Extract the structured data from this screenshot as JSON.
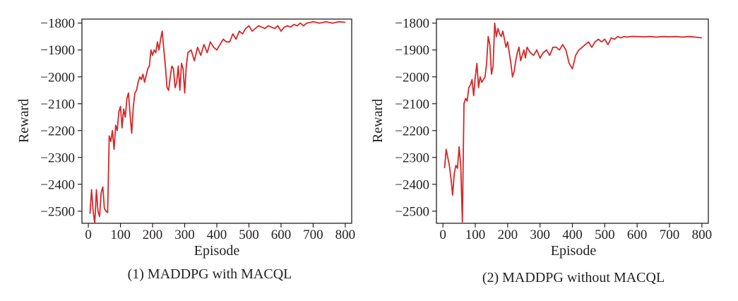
{
  "colors": {
    "line": "#d62728",
    "axis": "#231f20",
    "background": "#ffffff"
  },
  "chart_data": [
    {
      "type": "line",
      "caption": "(1) MADDPG with MACQL",
      "xlabel": "Episode",
      "ylabel": "Reward",
      "xlim": [
        -20,
        820
      ],
      "ylim": [
        -2545,
        -1785
      ],
      "xticks": [
        0,
        100,
        200,
        300,
        400,
        500,
        600,
        700,
        800
      ],
      "xtick_labels": [
        "0",
        "100",
        "200",
        "300",
        "400",
        "500",
        "600",
        "700",
        "800"
      ],
      "yticks": [
        -2500,
        -2400,
        -2300,
        -2200,
        -2100,
        -2000,
        -1900,
        -1800
      ],
      "ytick_labels": [
        "−2500",
        "−2400",
        "−2300",
        "−2200",
        "−2100",
        "−2000",
        "−1900",
        "−1800"
      ],
      "grid": false,
      "series": [
        {
          "x": [
            5,
            10,
            15,
            20,
            25,
            30,
            35,
            40,
            45,
            50,
            55,
            60,
            65,
            70,
            75,
            80,
            85,
            90,
            95,
            100,
            105,
            110,
            115,
            120,
            125,
            130,
            135,
            140,
            145,
            150,
            155,
            160,
            165,
            170,
            175,
            180,
            185,
            190,
            195,
            200,
            205,
            210,
            215,
            220,
            225,
            230,
            235,
            240,
            245,
            250,
            255,
            260,
            265,
            270,
            275,
            280,
            285,
            290,
            295,
            300,
            305,
            310,
            320,
            330,
            340,
            350,
            360,
            370,
            380,
            390,
            400,
            410,
            420,
            430,
            440,
            450,
            460,
            470,
            480,
            490,
            500,
            510,
            520,
            530,
            540,
            550,
            560,
            570,
            580,
            590,
            600,
            610,
            620,
            630,
            640,
            650,
            660,
            670,
            680,
            690,
            700,
            720,
            740,
            760,
            780,
            800
          ],
          "y": [
            -2510,
            -2420,
            -2500,
            -2545,
            -2420,
            -2500,
            -2520,
            -2430,
            -2410,
            -2490,
            -2500,
            -2505,
            -2220,
            -2240,
            -2200,
            -2270,
            -2180,
            -2200,
            -2130,
            -2110,
            -2190,
            -2120,
            -2150,
            -2080,
            -2060,
            -2140,
            -2210,
            -2110,
            -2060,
            -2050,
            -2020,
            -2000,
            -2010,
            -1990,
            -2020,
            -1995,
            -1970,
            -1960,
            -1900,
            -1920,
            -1900,
            -1910,
            -1870,
            -1900,
            -1860,
            -1830,
            -1900,
            -1960,
            -2040,
            -2050,
            -2000,
            -1960,
            -1970,
            -2040,
            -2020,
            -1960,
            -2050,
            -1950,
            -1970,
            -2060,
            -1960,
            -1910,
            -1900,
            -1940,
            -1890,
            -1920,
            -1880,
            -1910,
            -1870,
            -1890,
            -1900,
            -1880,
            -1860,
            -1870,
            -1870,
            -1840,
            -1860,
            -1830,
            -1840,
            -1820,
            -1810,
            -1830,
            -1820,
            -1810,
            -1815,
            -1820,
            -1810,
            -1815,
            -1820,
            -1810,
            -1830,
            -1815,
            -1810,
            -1815,
            -1805,
            -1810,
            -1800,
            -1810,
            -1800,
            -1798,
            -1795,
            -1800,
            -1795,
            -1800,
            -1795,
            -1797
          ]
        }
      ]
    },
    {
      "type": "line",
      "caption": "(2) MADDPG without MACQL",
      "xlabel": "Episode",
      "ylabel": "Reward",
      "xlim": [
        -20,
        820
      ],
      "ylim": [
        -2545,
        -1785
      ],
      "xticks": [
        0,
        100,
        200,
        300,
        400,
        500,
        600,
        700,
        800
      ],
      "xtick_labels": [
        "0",
        "100",
        "200",
        "300",
        "400",
        "500",
        "600",
        "700",
        "800"
      ],
      "yticks": [
        -2500,
        -2400,
        -2300,
        -2200,
        -2100,
        -2000,
        -1900,
        -1800
      ],
      "ytick_labels": [
        "−2500",
        "−2400",
        "−2300",
        "−2200",
        "−2100",
        "−2000",
        "−1900",
        "−1800"
      ],
      "grid": false,
      "series": [
        {
          "x": [
            5,
            10,
            15,
            20,
            25,
            30,
            35,
            40,
            45,
            50,
            55,
            60,
            65,
            70,
            75,
            80,
            85,
            90,
            95,
            100,
            105,
            110,
            115,
            120,
            125,
            130,
            135,
            140,
            145,
            150,
            155,
            160,
            165,
            170,
            175,
            180,
            185,
            190,
            195,
            200,
            205,
            210,
            215,
            220,
            225,
            230,
            235,
            240,
            245,
            250,
            255,
            260,
            270,
            280,
            290,
            300,
            310,
            320,
            330,
            340,
            350,
            360,
            370,
            380,
            390,
            400,
            410,
            420,
            430,
            440,
            450,
            460,
            470,
            480,
            490,
            500,
            510,
            520,
            530,
            540,
            550,
            560,
            570,
            580,
            600,
            620,
            640,
            660,
            680,
            700,
            720,
            740,
            760,
            780,
            800
          ],
          "y": [
            -2340,
            -2270,
            -2300,
            -2330,
            -2380,
            -2440,
            -2360,
            -2330,
            -2340,
            -2260,
            -2330,
            -2540,
            -2100,
            -2080,
            -2090,
            -2040,
            -2030,
            -2010,
            -2070,
            -2000,
            -1950,
            -2040,
            -2000,
            -2020,
            -2010,
            -2000,
            -1950,
            -1850,
            -1880,
            -1990,
            -1960,
            -1800,
            -1850,
            -1820,
            -1840,
            -1850,
            -1830,
            -1860,
            -1890,
            -1870,
            -1910,
            -1950,
            -2000,
            -1980,
            -1940,
            -1910,
            -1890,
            -1940,
            -1920,
            -1900,
            -1930,
            -1890,
            -1910,
            -1920,
            -1900,
            -1930,
            -1910,
            -1900,
            -1920,
            -1890,
            -1890,
            -1900,
            -1880,
            -1900,
            -1950,
            -1970,
            -1920,
            -1900,
            -1890,
            -1880,
            -1870,
            -1890,
            -1870,
            -1860,
            -1870,
            -1860,
            -1880,
            -1855,
            -1860,
            -1850,
            -1855,
            -1850,
            -1852,
            -1850,
            -1850,
            -1851,
            -1850,
            -1852,
            -1850,
            -1851,
            -1850,
            -1852,
            -1850,
            -1852,
            -1855
          ]
        }
      ]
    }
  ]
}
